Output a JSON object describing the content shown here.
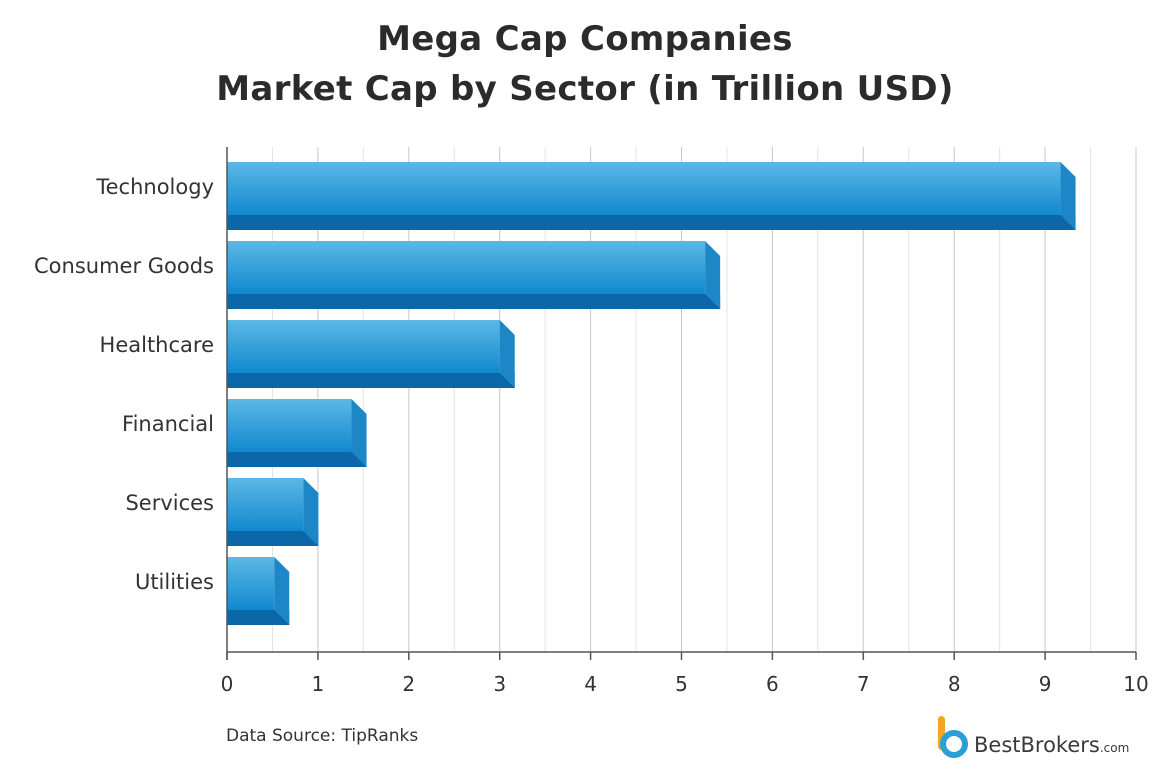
{
  "chart_data": {
    "type": "bar",
    "orientation": "horizontal",
    "title_lines": [
      "Mega Cap Companies",
      "Market Cap by Sector (in Trillion USD)"
    ],
    "categories": [
      "Technology",
      "Consumer Goods",
      "Healthcare",
      "Financial",
      "Services",
      "Utilities"
    ],
    "values": [
      9.17,
      5.26,
      3.0,
      1.37,
      0.84,
      0.52
    ],
    "xlim": [
      0,
      10
    ],
    "x_ticks": [
      "0",
      "1",
      "2",
      "3",
      "4",
      "5",
      "6",
      "7",
      "8",
      "9",
      "10"
    ],
    "grid": true,
    "bar_colors": {
      "face_top": "#5cb8e6",
      "face_bottom": "#1189cf",
      "base": "#0b67a8",
      "side": "#1c86c6"
    }
  },
  "footer": {
    "source": "Data Source: TipRanks",
    "brand_name": "BestBrokers",
    "brand_suffix": ".com"
  }
}
